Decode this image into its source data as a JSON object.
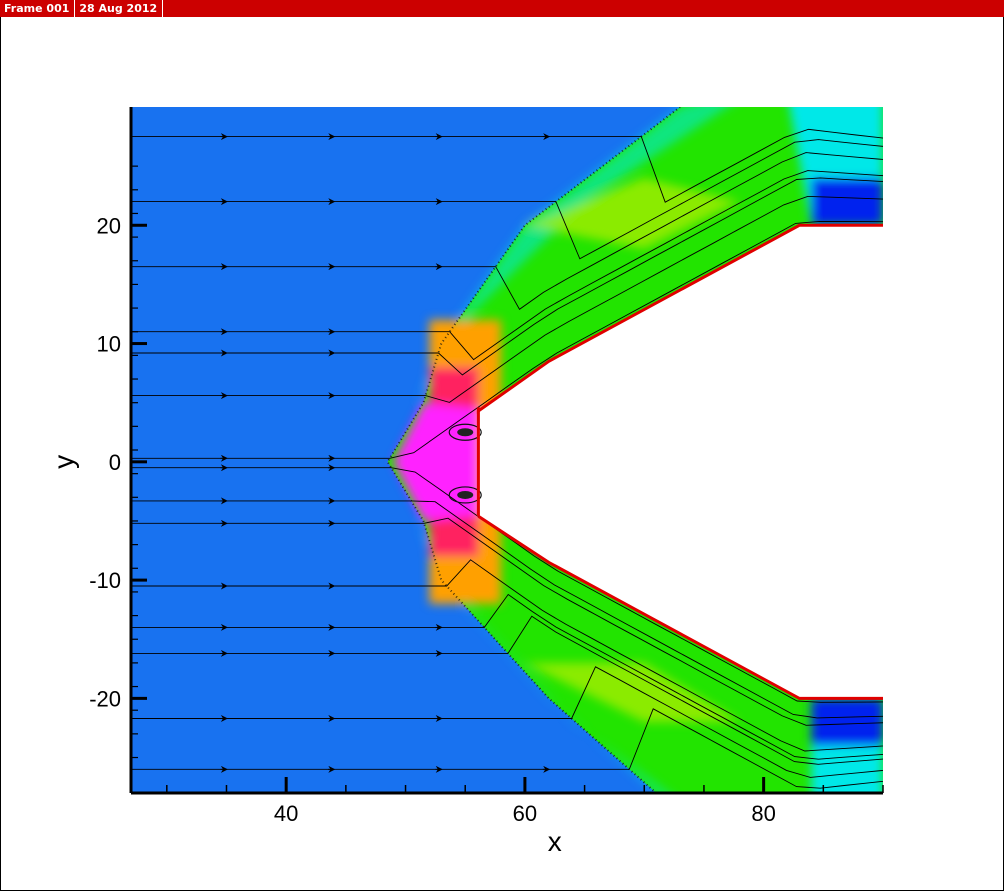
{
  "window": {
    "frame_label": "Frame 001",
    "date_label": "28 Aug 2012"
  },
  "chart_data": {
    "type": "contour",
    "title": "",
    "xlabel": "x",
    "ylabel": "y",
    "xlim": [
      27,
      90
    ],
    "ylim": [
      -28,
      30
    ],
    "xticks": [
      40,
      60,
      80
    ],
    "yticks": [
      -20,
      -10,
      0,
      10,
      20
    ],
    "xtick_labels": [
      "40",
      "60",
      "80"
    ],
    "ytick_labels": [
      "-20",
      "-10",
      "0",
      "10",
      "20"
    ],
    "grid": false,
    "legend": "none",
    "colormap": {
      "freestream": "#1872f0",
      "shock_layer": "#22e400",
      "compressed": "#b8ee00",
      "stagnation": "#ff20ff",
      "hot": "#ff2060",
      "warm": "#ffa000",
      "expansion_light": "#00e8e8",
      "expansion_dark": "#0022ee"
    },
    "body": {
      "color": "#e00000",
      "upper_wall": [
        [
          56.1,
          4.6
        ],
        [
          56.1,
          4.3
        ],
        [
          62,
          8.5
        ],
        [
          83,
          20
        ],
        [
          90,
          20
        ]
      ],
      "lower_wall": [
        [
          56.1,
          -4.6
        ],
        [
          62,
          -8.5
        ],
        [
          83,
          -20
        ],
        [
          90,
          -20
        ]
      ],
      "nose_face": [
        [
          56.1,
          4.3
        ],
        [
          56.1,
          -4.6
        ]
      ]
    },
    "shock_front": [
      [
        73,
        30
      ],
      [
        60,
        20
      ],
      [
        53,
        10
      ],
      [
        51.5,
        5
      ],
      [
        48.5,
        0
      ],
      [
        51.5,
        -5
      ],
      [
        53,
        -10
      ],
      [
        62,
        -20
      ],
      [
        71,
        -28
      ]
    ],
    "streamline_start_y": [
      27.5,
      22,
      16.5,
      11,
      9.2,
      5.6,
      0.3,
      -0.5,
      -3.3,
      -5.2,
      -10.5,
      -14,
      -16.2,
      -21.7,
      -26
    ]
  }
}
